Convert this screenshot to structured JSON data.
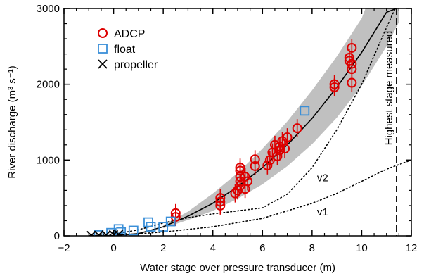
{
  "chart_data": {
    "type": "scatter",
    "xlabel": "Water stage over pressure transducer (m)",
    "ylabel": "River discharge (m³ s⁻¹)",
    "xlim": [
      -2,
      12
    ],
    "ylim": [
      0,
      3000
    ],
    "xticks": [
      -2,
      0,
      2,
      4,
      6,
      8,
      10,
      12
    ],
    "yticks": [
      0,
      1000,
      2000,
      3000
    ],
    "legend_position": "top-left",
    "colors": {
      "adcp": "#dd0000",
      "float": "#3a8fd8",
      "propeller": "#000000",
      "band": "#c0c0c0"
    },
    "series": [
      {
        "name": "ADCP",
        "marker": "circle",
        "points": [
          [
            2.5,
            250
          ],
          [
            2.5,
            300
          ],
          [
            4.3,
            400
          ],
          [
            4.3,
            450
          ],
          [
            4.3,
            500
          ],
          [
            4.9,
            560
          ],
          [
            5.0,
            600
          ],
          [
            5.1,
            660
          ],
          [
            5.1,
            900
          ],
          [
            5.1,
            860
          ],
          [
            5.1,
            780
          ],
          [
            5.1,
            720
          ],
          [
            5.3,
            620
          ],
          [
            5.3,
            780
          ],
          [
            5.4,
            720
          ],
          [
            5.7,
            920
          ],
          [
            5.7,
            1010
          ],
          [
            6.2,
            930
          ],
          [
            6.3,
            1000
          ],
          [
            6.4,
            1100
          ],
          [
            6.5,
            1200
          ],
          [
            6.6,
            1050
          ],
          [
            6.7,
            1130
          ],
          [
            6.7,
            1180
          ],
          [
            6.8,
            1250
          ],
          [
            6.9,
            1150
          ],
          [
            7.0,
            1300
          ],
          [
            7.4,
            1420
          ],
          [
            8.9,
            1960
          ],
          [
            8.9,
            2000
          ],
          [
            9.5,
            2310
          ],
          [
            9.5,
            2350
          ],
          [
            9.6,
            2020
          ],
          [
            9.6,
            2200
          ],
          [
            9.6,
            2270
          ],
          [
            9.6,
            2480
          ]
        ]
      },
      {
        "name": "float",
        "marker": "square",
        "points": [
          [
            -0.6,
            10
          ],
          [
            -0.1,
            40
          ],
          [
            0.2,
            90
          ],
          [
            0.3,
            50
          ],
          [
            0.8,
            70
          ],
          [
            1.4,
            180
          ],
          [
            1.5,
            120
          ],
          [
            2.0,
            120
          ],
          [
            2.3,
            190
          ],
          [
            7.7,
            1650
          ]
        ]
      },
      {
        "name": "propeller",
        "marker": "x",
        "points": [
          [
            -0.9,
            5
          ],
          [
            -0.6,
            8
          ],
          [
            -0.3,
            12
          ],
          [
            0.0,
            15
          ],
          [
            0.2,
            20
          ]
        ]
      }
    ],
    "curves": [
      {
        "label": "",
        "style": "solid",
        "points": [
          [
            -1.0,
            0
          ],
          [
            0.0,
            5
          ],
          [
            1.0,
            30
          ],
          [
            2.0,
            120
          ],
          [
            3.0,
            260
          ],
          [
            4.0,
            430
          ],
          [
            5.0,
            650
          ],
          [
            6.0,
            900
          ],
          [
            7.0,
            1200
          ],
          [
            8.0,
            1550
          ],
          [
            9.0,
            1960
          ],
          [
            10.0,
            2420
          ],
          [
            11.0,
            2950
          ],
          [
            11.4,
            3000
          ]
        ]
      },
      {
        "label": "v2",
        "style": "dotted",
        "points": [
          [
            -1.0,
            0
          ],
          [
            0.0,
            20
          ],
          [
            1.0,
            80
          ],
          [
            2.0,
            170
          ],
          [
            3.0,
            240
          ],
          [
            4.0,
            290
          ],
          [
            5.0,
            330
          ],
          [
            6.0,
            370
          ],
          [
            7.0,
            550
          ],
          [
            8.0,
            900
          ],
          [
            9.0,
            1400
          ],
          [
            10.0,
            2000
          ],
          [
            11.0,
            2750
          ],
          [
            11.35,
            3000
          ]
        ]
      },
      {
        "label": "v1",
        "style": "dotted",
        "points": [
          [
            -1.0,
            0
          ],
          [
            0.0,
            5
          ],
          [
            2.0,
            50
          ],
          [
            4.0,
            120
          ],
          [
            6.0,
            230
          ],
          [
            8.0,
            430
          ],
          [
            9.0,
            560
          ],
          [
            10.0,
            720
          ],
          [
            11.0,
            880
          ],
          [
            12.0,
            1000
          ]
        ]
      }
    ],
    "uncertainty_band": {
      "upper": [
        [
          2.0,
          140
        ],
        [
          3.0,
          320
        ],
        [
          4.0,
          560
        ],
        [
          5.0,
          830
        ],
        [
          6.0,
          1150
        ],
        [
          7.0,
          1510
        ],
        [
          8.0,
          1920
        ],
        [
          9.0,
          2370
        ],
        [
          10.0,
          2870
        ],
        [
          10.15,
          3000
        ]
      ],
      "lower": [
        [
          2.0,
          100
        ],
        [
          3.0,
          210
        ],
        [
          4.0,
          330
        ],
        [
          5.0,
          490
        ],
        [
          6.0,
          680
        ],
        [
          7.0,
          920
        ],
        [
          8.0,
          1210
        ],
        [
          9.0,
          1560
        ],
        [
          10.0,
          1980
        ],
        [
          11.0,
          2500
        ],
        [
          11.5,
          2820
        ]
      ]
    },
    "vline": {
      "x": 11.4,
      "label": "Highest stage measured",
      "style": "dashed"
    },
    "annotations": [
      {
        "text": "v2",
        "x": 8.2,
        "y": 720
      },
      {
        "text": "v1",
        "x": 8.2,
        "y": 270
      }
    ]
  }
}
